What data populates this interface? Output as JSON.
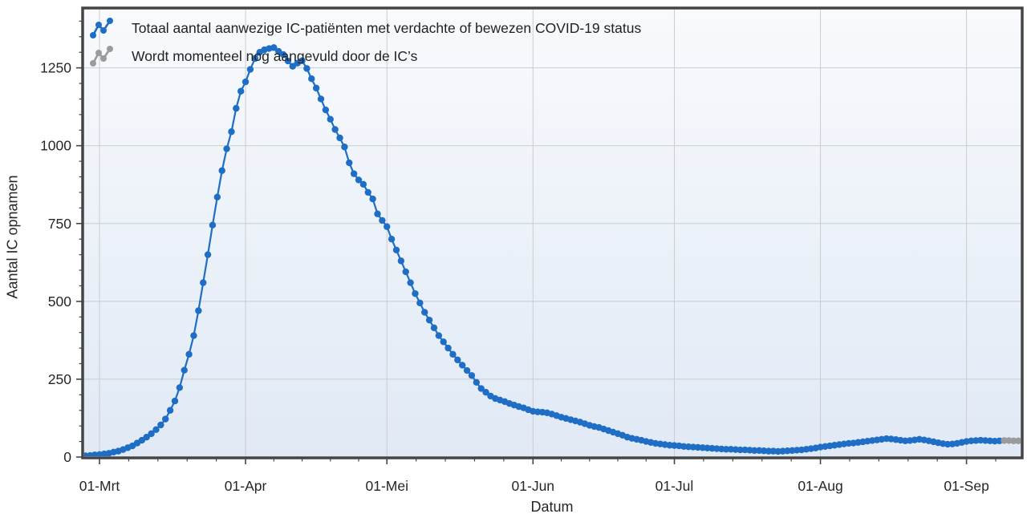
{
  "page": {
    "background": "#ffffff"
  },
  "legend": {
    "position": "top-left-inside-plot",
    "items": [
      {
        "label": "Totaal aantal aanwezige IC-patiënten met verdachte of bewezen COVID-19 status",
        "marker": "zigzag-dots-icon",
        "color": "#1f6ec6"
      },
      {
        "label": "Wordt momenteel nog aangevuld door de IC’s",
        "marker": "zigzag-dots-icon",
        "color": "#9b9b9b"
      }
    ]
  },
  "chart_data": {
    "type": "line",
    "title": "",
    "xlabel": "Datum",
    "ylabel": "Aantal IC opnamen",
    "x_unit": "day",
    "x_tick_labels": [
      "01-Mrt",
      "01-Apr",
      "01-Mei",
      "01-Jun",
      "01-Jul",
      "01-Aug",
      "01-Sep"
    ],
    "x_tick_day_index": [
      3,
      34,
      64,
      95,
      125,
      156,
      187
    ],
    "y_tick_labels": [
      "0",
      "250",
      "500",
      "750",
      "1000",
      "1250"
    ],
    "y_tick_values": [
      0,
      250,
      500,
      750,
      1000,
      1250
    ],
    "y_minor_step": 50,
    "y_minor_max": 1400,
    "ylim": [
      0,
      1443
    ],
    "grid": true,
    "legend_position": "top-left",
    "marker_radius": 4.2,
    "line_width": 2.2,
    "colors": {
      "blue_series": "#1f6ec6",
      "gray_series": "#9b9b9b",
      "grid": "#cccccc",
      "frame": "#454545",
      "tick": "#444444",
      "text": "#262626",
      "plot_bg_top": "#f8fafd",
      "plot_bg_bottom": "#e0e9f5"
    },
    "series": [
      {
        "name": "Totaal aantal aanwezige IC-patiënten met verdachte of bewezen COVID-19 status",
        "color": "#1f6ec6",
        "start_index": 0,
        "values": [
          4,
          5,
          7,
          8,
          10,
          12,
          16,
          19,
          24,
          30,
          36,
          45,
          54,
          64,
          75,
          88,
          103,
          122,
          150,
          180,
          223,
          279,
          330,
          390,
          470,
          560,
          650,
          745,
          835,
          920,
          990,
          1045,
          1120,
          1175,
          1205,
          1245,
          1280,
          1300,
          1308,
          1312,
          1315,
          1303,
          1293,
          1272,
          1255,
          1265,
          1273,
          1248,
          1215,
          1185,
          1150,
          1115,
          1085,
          1052,
          1025,
          996,
          945,
          910,
          890,
          876,
          850,
          829,
          781,
          760,
          740,
          700,
          665,
          630,
          595,
          560,
          525,
          495,
          465,
          440,
          415,
          390,
          370,
          350,
          330,
          312,
          295,
          278,
          262,
          240,
          220,
          208,
          196,
          188,
          183,
          178,
          172,
          167,
          162,
          158,
          152,
          147,
          145,
          144,
          142,
          138,
          133,
          128,
          124,
          120,
          116,
          112,
          107,
          102,
          98,
          95,
          90,
          85,
          80,
          75,
          70,
          64,
          60,
          57,
          54,
          50,
          47,
          44,
          42,
          40,
          38,
          37,
          36,
          34,
          33,
          32,
          31,
          30,
          29,
          28,
          27,
          26,
          25,
          25,
          24,
          23,
          23,
          22,
          21,
          21,
          20,
          19,
          19,
          18,
          19,
          20,
          21,
          22,
          23,
          25,
          27,
          29,
          32,
          34,
          36,
          38,
          40,
          42,
          44,
          45,
          47,
          49,
          51,
          53,
          55,
          57,
          59,
          58,
          56,
          54,
          52,
          53,
          55,
          57,
          55,
          52,
          49,
          46,
          43,
          41,
          42,
          44,
          47,
          50,
          52,
          53,
          54,
          53,
          52,
          51,
          52
        ]
      },
      {
        "name": "Wordt momenteel nog aangevuld door de IC’s",
        "color": "#9b9b9b",
        "start_index": 195,
        "values": [
          53,
          53,
          52,
          52
        ]
      }
    ]
  }
}
